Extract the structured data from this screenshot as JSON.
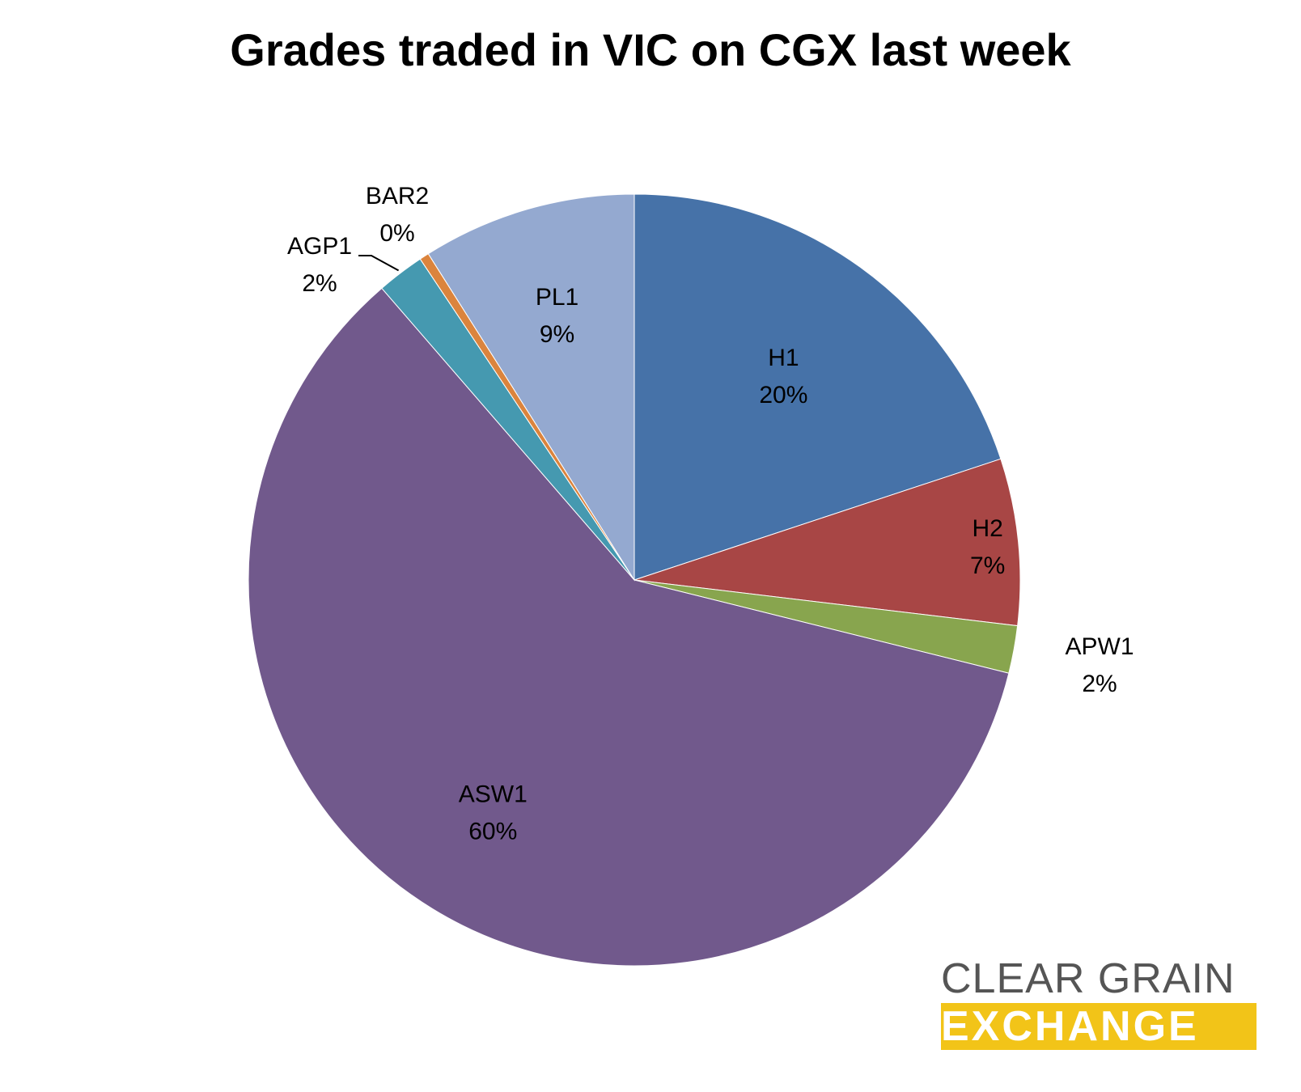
{
  "chart_data": {
    "type": "pie",
    "title": "Grades traded in VIC on CGX last week",
    "start_angle_deg": 0,
    "direction": "clockwise",
    "series": [
      {
        "label": "H1",
        "value": 20,
        "percent_label": "20%",
        "color": "#4672a8"
      },
      {
        "label": "H2",
        "value": 7,
        "percent_label": "7%",
        "color": "#a84645"
      },
      {
        "label": "APW1",
        "value": 2,
        "percent_label": "2%",
        "color": "#88a54e"
      },
      {
        "label": "ASW1",
        "value": 60,
        "percent_label": "60%",
        "color": "#71598c"
      },
      {
        "label": "AGP1",
        "value": 2,
        "percent_label": "2%",
        "color": "#4599b0"
      },
      {
        "label": "BAR2",
        "value": 0.4,
        "percent_label": "0%",
        "color": "#db843d"
      },
      {
        "label": "PL1",
        "value": 9,
        "percent_label": "9%",
        "color": "#94a9d0"
      }
    ]
  },
  "logo": {
    "line1": "CLEAR GRAIN",
    "line2": "EXCHANGE"
  }
}
